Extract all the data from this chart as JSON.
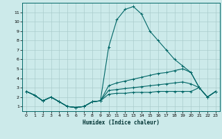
{
  "title": "",
  "xlabel": "Humidex (Indice chaleur)",
  "xlim": [
    -0.5,
    23.5
  ],
  "ylim": [
    0.5,
    12
  ],
  "xticks": [
    0,
    1,
    2,
    3,
    4,
    5,
    6,
    7,
    8,
    9,
    10,
    11,
    12,
    13,
    14,
    15,
    16,
    17,
    18,
    19,
    20,
    21,
    22,
    23
  ],
  "yticks": [
    1,
    2,
    3,
    4,
    5,
    6,
    7,
    8,
    9,
    10,
    11
  ],
  "bg_color": "#cceaea",
  "line_color": "#006666",
  "grid_color": "#aacccc",
  "lines": [
    {
      "x": [
        0,
        1,
        2,
        3,
        4,
        5,
        6,
        7,
        8,
        9,
        10,
        11,
        12,
        13,
        14,
        15,
        16,
        17,
        18,
        19,
        20,
        21,
        22,
        23
      ],
      "y": [
        2.6,
        2.2,
        1.6,
        2.0,
        1.5,
        1.0,
        0.9,
        1.0,
        1.5,
        1.6,
        7.3,
        10.2,
        11.3,
        11.6,
        10.8,
        9.0,
        8.0,
        7.0,
        6.0,
        5.3,
        4.6,
        3.0,
        2.0,
        2.6
      ]
    },
    {
      "x": [
        0,
        1,
        2,
        3,
        4,
        5,
        6,
        7,
        8,
        9,
        10,
        11,
        12,
        13,
        14,
        15,
        16,
        17,
        18,
        19,
        20,
        21,
        22,
        23
      ],
      "y": [
        2.6,
        2.2,
        1.6,
        2.0,
        1.5,
        1.0,
        0.9,
        1.0,
        1.5,
        1.6,
        3.2,
        3.5,
        3.7,
        3.9,
        4.1,
        4.3,
        4.5,
        4.6,
        4.8,
        5.0,
        4.6,
        3.0,
        2.0,
        2.6
      ]
    },
    {
      "x": [
        0,
        1,
        2,
        3,
        4,
        5,
        6,
        7,
        8,
        9,
        10,
        11,
        12,
        13,
        14,
        15,
        16,
        17,
        18,
        19,
        20,
        21,
        22,
        23
      ],
      "y": [
        2.6,
        2.2,
        1.6,
        2.0,
        1.5,
        1.0,
        0.9,
        1.0,
        1.5,
        1.6,
        2.7,
        2.8,
        2.9,
        3.0,
        3.1,
        3.2,
        3.3,
        3.4,
        3.5,
        3.6,
        3.4,
        3.0,
        2.0,
        2.6
      ]
    },
    {
      "x": [
        0,
        1,
        2,
        3,
        4,
        5,
        6,
        7,
        8,
        9,
        10,
        11,
        12,
        13,
        14,
        15,
        16,
        17,
        18,
        19,
        20,
        21,
        22,
        23
      ],
      "y": [
        2.6,
        2.2,
        1.6,
        2.0,
        1.5,
        1.0,
        0.9,
        1.0,
        1.5,
        1.6,
        2.3,
        2.4,
        2.4,
        2.5,
        2.5,
        2.5,
        2.6,
        2.6,
        2.6,
        2.6,
        2.6,
        3.0,
        2.0,
        2.6
      ]
    }
  ]
}
